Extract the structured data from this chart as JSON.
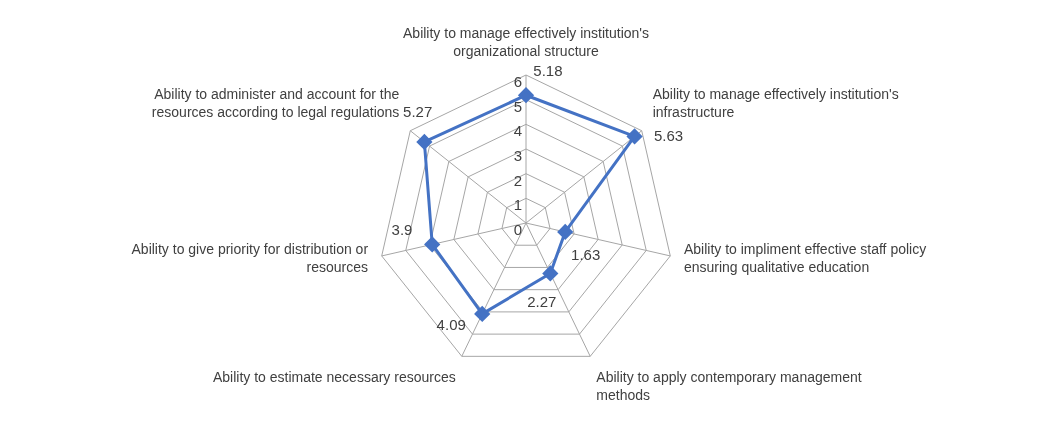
{
  "chart_data": {
    "type": "radar",
    "categories": [
      "Ability to manage effectively institution's organizational structure",
      "Ability to manage effectively institution's infrastructure",
      "Ability to impliment effective staff policy ensuring qualitative education",
      "Ability to apply contemporary management methods",
      "Ability to estimate necessary resources",
      "Ability to give priority for distribution or resources",
      "Ability to administer and account for the resources according to legal regulations"
    ],
    "series": [
      {
        "color": "#4472c4",
        "values": [
          5.18,
          5.63,
          1.63,
          2.27,
          4.09,
          3.9,
          5.27
        ]
      }
    ],
    "ylim": [
      0,
      6
    ],
    "yticks": [
      0,
      1,
      2,
      3,
      4,
      5,
      6
    ],
    "grid": true,
    "legend": false,
    "marker": "diamond",
    "line_style": "solid",
    "data_labels": true
  }
}
